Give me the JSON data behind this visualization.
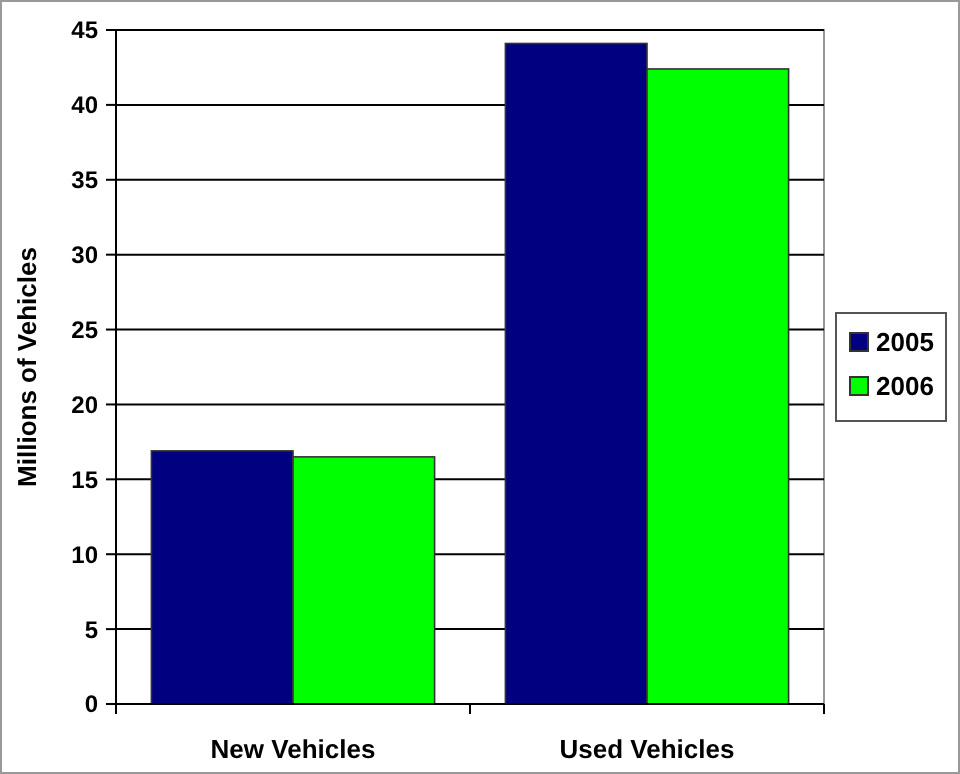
{
  "chart_data": {
    "type": "bar",
    "ylabel": "Millions of Vehicles",
    "categories": [
      "New Vehicles",
      "Used Vehicles"
    ],
    "series": [
      {
        "name": "2005",
        "color": "#000080",
        "values": [
          16.9,
          44.1
        ]
      },
      {
        "name": "2006",
        "color": "#00ff00",
        "values": [
          16.5,
          42.4
        ]
      }
    ],
    "ylim": [
      0,
      45
    ],
    "yticks": [
      0,
      5,
      10,
      15,
      20,
      25,
      30,
      35,
      40,
      45
    ],
    "grid": "y",
    "legend": "right"
  }
}
